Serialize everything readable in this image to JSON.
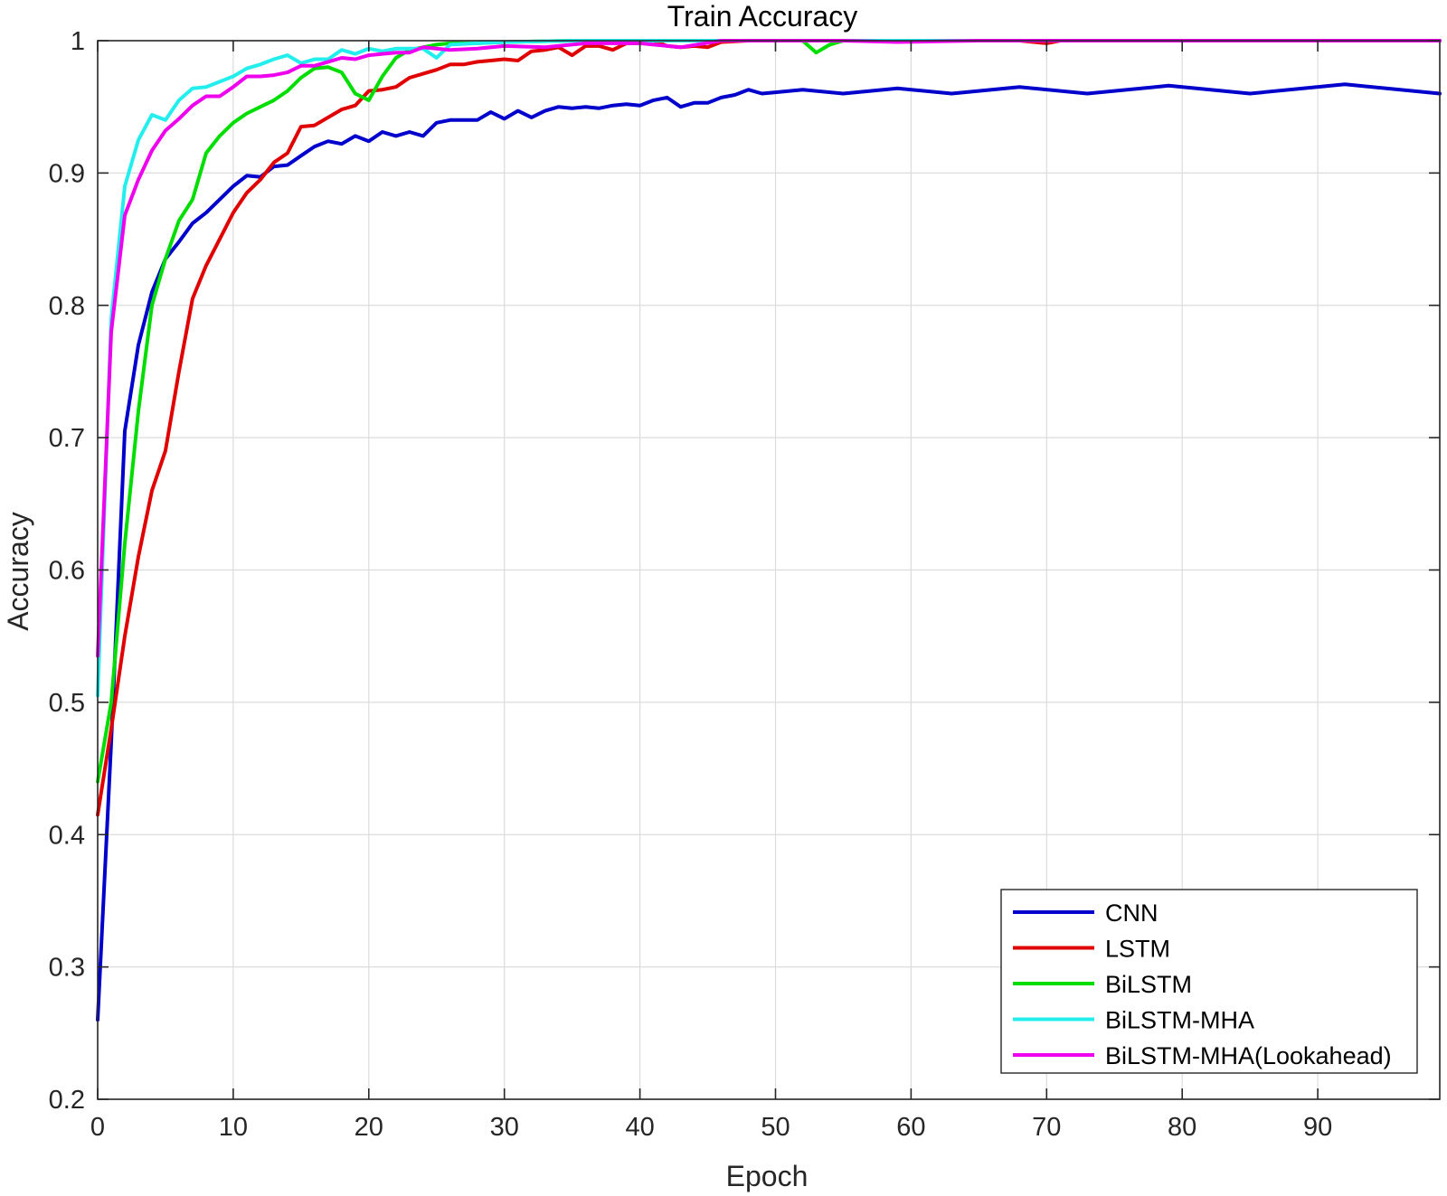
{
  "chart_data": {
    "type": "line",
    "title": "Train Accuracy",
    "xlabel": "Epoch",
    "ylabel": "Accuracy",
    "xlim": [
      0,
      99
    ],
    "ylim": [
      0.2,
      1
    ],
    "xticks": [
      0,
      10,
      20,
      30,
      40,
      50,
      60,
      70,
      80,
      90
    ],
    "yticks": [
      0.2,
      0.3,
      0.4,
      0.5,
      0.6,
      0.7,
      0.8,
      0.9,
      1
    ],
    "xtick_labels": [
      "0",
      "10",
      "20",
      "30",
      "40",
      "50",
      "60",
      "70",
      "80",
      "90"
    ],
    "ytick_labels": [
      "0.2",
      "0.3",
      "0.4",
      "0.5",
      "0.6",
      "0.7",
      "0.8",
      "0.9",
      "1"
    ],
    "grid": true,
    "legend_position": "bottom-right",
    "series": [
      {
        "name": "CNN",
        "color": "#0000cc",
        "x": [
          0,
          1,
          2,
          3,
          4,
          5,
          6,
          7,
          8,
          9,
          10,
          11,
          12,
          13,
          14,
          15,
          16,
          17,
          18,
          19,
          20,
          21,
          22,
          23,
          24,
          25,
          26,
          27,
          28,
          29,
          30,
          31,
          32,
          33,
          34,
          35,
          36,
          37,
          38,
          39,
          40,
          41,
          42,
          43,
          44,
          45,
          46,
          47,
          48,
          49,
          50,
          52,
          55,
          59,
          63,
          68,
          73,
          79,
          85,
          92,
          99
        ],
        "y": [
          0.26,
          0.47,
          0.705,
          0.77,
          0.81,
          0.835,
          0.848,
          0.862,
          0.87,
          0.88,
          0.89,
          0.898,
          0.897,
          0.905,
          0.906,
          0.913,
          0.92,
          0.924,
          0.922,
          0.928,
          0.924,
          0.931,
          0.928,
          0.931,
          0.928,
          0.938,
          0.94,
          0.94,
          0.94,
          0.946,
          0.941,
          0.947,
          0.942,
          0.947,
          0.95,
          0.949,
          0.95,
          0.949,
          0.951,
          0.952,
          0.951,
          0.955,
          0.957,
          0.95,
          0.953,
          0.953,
          0.957,
          0.959,
          0.963,
          0.96,
          0.961,
          0.963,
          0.96,
          0.964,
          0.96,
          0.965,
          0.96,
          0.966,
          0.96,
          0.967,
          0.96
        ]
      },
      {
        "name": "LSTM",
        "color": "#e00000",
        "x": [
          0,
          1,
          2,
          3,
          4,
          5,
          6,
          7,
          8,
          9,
          10,
          11,
          12,
          13,
          14,
          15,
          16,
          17,
          18,
          19,
          20,
          21,
          22,
          23,
          24,
          25,
          26,
          27,
          28,
          29,
          30,
          31,
          32,
          33,
          34,
          35,
          36,
          37,
          38,
          39,
          40,
          41,
          42,
          43,
          44,
          45,
          46,
          48,
          52,
          55,
          60,
          65,
          68,
          70,
          71,
          75,
          80,
          90,
          99
        ],
        "y": [
          0.415,
          0.48,
          0.55,
          0.61,
          0.66,
          0.69,
          0.75,
          0.805,
          0.83,
          0.85,
          0.87,
          0.885,
          0.895,
          0.908,
          0.915,
          0.935,
          0.936,
          0.942,
          0.948,
          0.951,
          0.962,
          0.963,
          0.965,
          0.972,
          0.975,
          0.978,
          0.982,
          0.982,
          0.984,
          0.985,
          0.986,
          0.985,
          0.992,
          0.993,
          0.995,
          0.989,
          0.996,
          0.996,
          0.993,
          0.998,
          0.998,
          1,
          0.996,
          0.995,
          0.996,
          0.995,
          0.999,
          1,
          1,
          1,
          1,
          1,
          1,
          0.998,
          1,
          1,
          1,
          1,
          1
        ]
      },
      {
        "name": "BiLSTM",
        "color": "#00dd00",
        "x": [
          0,
          1,
          2,
          3,
          4,
          5,
          6,
          7,
          8,
          9,
          10,
          11,
          12,
          13,
          14,
          15,
          16,
          17,
          18,
          19,
          20,
          21,
          22,
          23,
          24,
          25,
          26,
          28,
          30,
          35,
          40,
          45,
          50,
          52,
          53,
          54,
          55,
          60,
          70,
          80,
          90,
          99
        ],
        "y": [
          0.44,
          0.5,
          0.62,
          0.72,
          0.8,
          0.835,
          0.864,
          0.88,
          0.915,
          0.928,
          0.938,
          0.945,
          0.95,
          0.955,
          0.962,
          0.972,
          0.979,
          0.98,
          0.976,
          0.96,
          0.955,
          0.973,
          0.987,
          0.993,
          0.995,
          0.997,
          0.998,
          0.998,
          0.999,
          1,
          1,
          1,
          1,
          1,
          0.991,
          0.997,
          1,
          1,
          1,
          1,
          1,
          1
        ]
      },
      {
        "name": "BiLSTM-MHA",
        "color": "#22eeee",
        "x": [
          0,
          1,
          2,
          3,
          4,
          5,
          6,
          7,
          8,
          9,
          10,
          11,
          12,
          13,
          14,
          15,
          16,
          17,
          18,
          19,
          20,
          21,
          22,
          23,
          24,
          25,
          26,
          28,
          30,
          35,
          40,
          50,
          60,
          70,
          80,
          90,
          99
        ],
        "y": [
          0.505,
          0.79,
          0.89,
          0.925,
          0.944,
          0.94,
          0.955,
          0.964,
          0.965,
          0.969,
          0.973,
          0.979,
          0.982,
          0.986,
          0.989,
          0.983,
          0.986,
          0.986,
          0.993,
          0.99,
          0.994,
          0.992,
          0.994,
          0.994,
          0.994,
          0.987,
          0.997,
          0.998,
          0.999,
          1,
          1,
          1,
          1,
          1,
          1,
          1,
          1
        ]
      },
      {
        "name": "BiLSTM-MHA(Lookahead)",
        "color": "#ee00ee",
        "x": [
          0,
          1,
          2,
          3,
          4,
          5,
          6,
          7,
          8,
          9,
          10,
          11,
          12,
          13,
          14,
          15,
          16,
          17,
          18,
          19,
          20,
          21,
          22,
          23,
          24,
          25,
          26,
          28,
          30,
          33,
          36,
          40,
          43,
          46,
          50,
          55,
          59,
          65,
          70,
          80,
          90,
          99
        ],
        "y": [
          0.535,
          0.78,
          0.868,
          0.895,
          0.917,
          0.932,
          0.941,
          0.951,
          0.958,
          0.958,
          0.965,
          0.973,
          0.973,
          0.974,
          0.976,
          0.981,
          0.981,
          0.984,
          0.987,
          0.986,
          0.989,
          0.99,
          0.991,
          0.991,
          0.995,
          0.994,
          0.993,
          0.994,
          0.996,
          0.995,
          0.998,
          0.998,
          0.995,
          1,
          1,
          1,
          0.999,
          1,
          1,
          1,
          1,
          1
        ]
      }
    ]
  }
}
